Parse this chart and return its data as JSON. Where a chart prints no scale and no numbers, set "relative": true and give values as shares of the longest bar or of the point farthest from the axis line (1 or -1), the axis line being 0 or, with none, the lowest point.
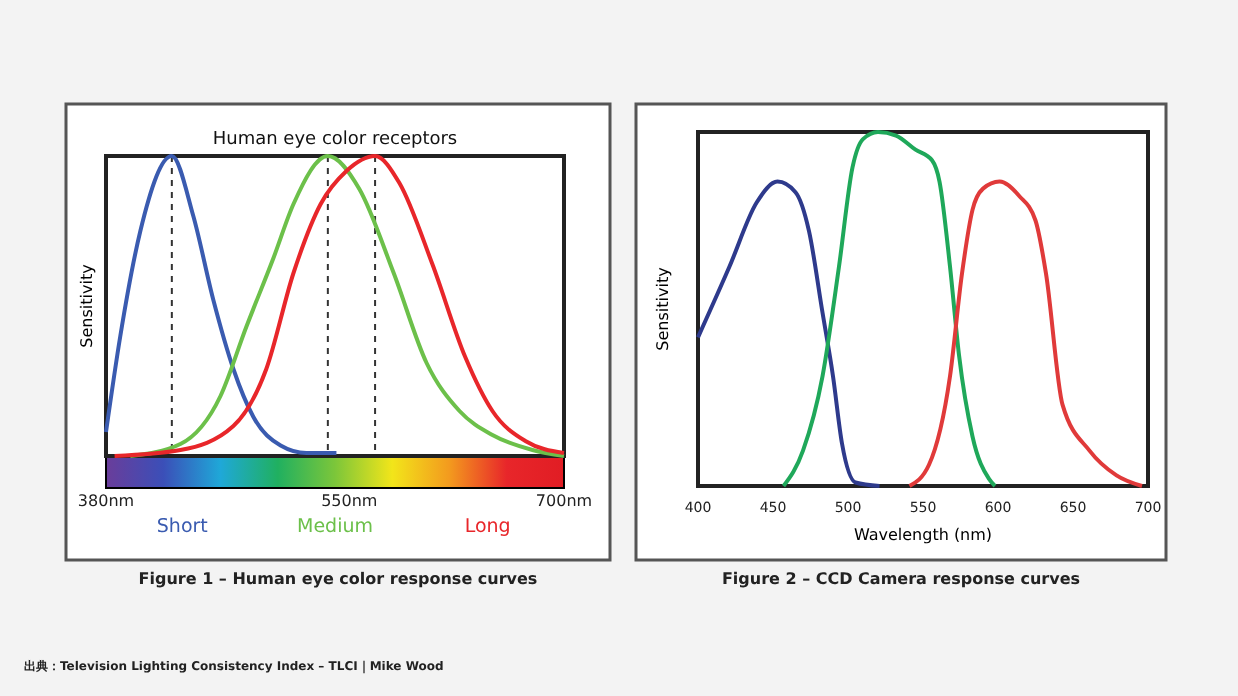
{
  "chart_data": [
    {
      "type": "line",
      "title": "Human eye color receptors",
      "ylabel": "Sensitivity",
      "relative": true,
      "legend": false,
      "grid": false,
      "marker": "none",
      "line_style": "solid",
      "xlim": [
        380,
        700
      ],
      "xticks": [
        {
          "value": 380,
          "label": "380nm"
        },
        {
          "value": 550,
          "label": "550nm"
        },
        {
          "value": 700,
          "label": "700nm"
        }
      ],
      "ref_lines": [
        {
          "axis": "x",
          "value": 426,
          "line_style": "dashed"
        },
        {
          "axis": "x",
          "value": 535,
          "line_style": "dashed"
        },
        {
          "axis": "x",
          "value": 568,
          "line_style": "dashed"
        }
      ],
      "annotations": [
        "Figure 1 – Human eye color response curves",
        "出典：Television Lighting Consistency Index – TLCI｜Mike Wood"
      ],
      "series": [
        {
          "name": "Short",
          "color": "#3a5bb0",
          "x": [
            380,
            390,
            404,
            426,
            441,
            455,
            469,
            483,
            502,
            520,
            541
          ],
          "values": [
            0.08,
            0.4,
            0.75,
            1,
            0.8,
            0.52,
            0.29,
            0.13,
            0.035,
            0.01,
            0.01
          ]
        },
        {
          "name": "Medium",
          "color": "#6cc04a",
          "x": [
            397,
            432,
            460,
            478,
            497,
            511,
            535,
            557,
            581,
            604,
            627,
            650,
            678,
            700
          ],
          "values": [
            0,
            0.04,
            0.2,
            0.43,
            0.66,
            0.84,
            1,
            0.89,
            0.61,
            0.31,
            0.15,
            0.07,
            0.02,
            0
          ]
        },
        {
          "name": "Long",
          "color": "#e8262a",
          "x": [
            386,
            432,
            469,
            492,
            511,
            530,
            548,
            568,
            585,
            608,
            631,
            650,
            673,
            700
          ],
          "values": [
            0,
            0.02,
            0.1,
            0.29,
            0.61,
            0.84,
            0.95,
            1,
            0.91,
            0.64,
            0.33,
            0.15,
            0.05,
            0.01
          ]
        }
      ]
    },
    {
      "type": "line",
      "xlabel": "Wavelength (nm)",
      "ylabel": "Sensitivity",
      "relative": true,
      "legend": false,
      "grid": false,
      "marker": "none",
      "line_style": "solid",
      "xlim": [
        400,
        700
      ],
      "xticks": [
        400,
        450,
        500,
        550,
        600,
        650,
        700
      ],
      "annotations": [
        "Figure 2 – CCD Camera response curves"
      ],
      "series": [
        {
          "color": "#2e3a8c",
          "x": [
            400,
            421,
            439,
            453,
            465,
            474,
            483,
            490,
            496,
            505,
            521
          ],
          "values": [
            0.42,
            0.62,
            0.8,
            0.86,
            0.83,
            0.72,
            0.49,
            0.31,
            0.12,
            0.01,
            0
          ]
        },
        {
          "color": "#1fa85a",
          "x": [
            457,
            470,
            483,
            494,
            503,
            510,
            520,
            532,
            545,
            556,
            561,
            568,
            574,
            583,
            594,
            598
          ],
          "values": [
            0,
            0.1,
            0.31,
            0.62,
            0.9,
            0.98,
            1,
            0.99,
            0.95,
            0.92,
            0.86,
            0.62,
            0.37,
            0.14,
            0.02,
            0
          ]
        },
        {
          "color": "#e03a3a",
          "x": [
            541,
            554,
            568,
            576,
            583,
            590,
            601,
            614,
            625,
            632,
            643,
            661,
            679,
            696
          ],
          "values": [
            0,
            0.06,
            0.31,
            0.6,
            0.78,
            0.84,
            0.86,
            0.82,
            0.75,
            0.6,
            0.23,
            0.1,
            0.03,
            0
          ]
        }
      ]
    }
  ]
}
